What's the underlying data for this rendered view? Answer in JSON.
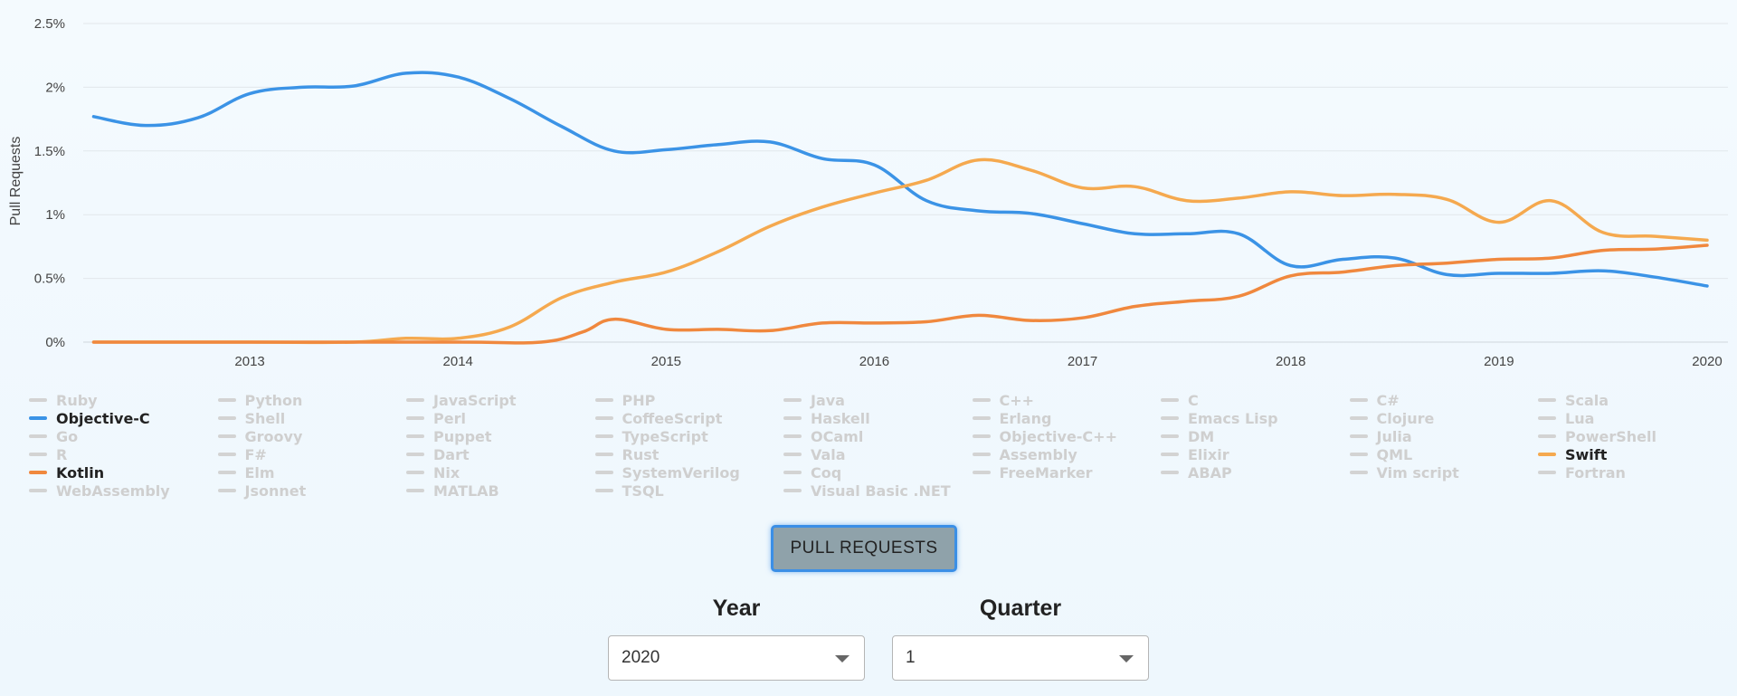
{
  "chart_data": {
    "type": "line",
    "ylabel": "Pull Requests",
    "xlabel": "",
    "title": "",
    "ylim": [
      0,
      2.5
    ],
    "xlim": [
      2012.2,
      2020.1
    ],
    "y_ticks": [
      "0%",
      "0.5%",
      "1%",
      "1.5%",
      "2%",
      "2.5%"
    ],
    "x_ticks": [
      "2013",
      "2014",
      "2015",
      "2016",
      "2017",
      "2018",
      "2019",
      "2020"
    ],
    "grid": true,
    "series": [
      {
        "name": "Objective-C",
        "color": "#3b93e6",
        "points": [
          [
            2012.25,
            1.77
          ],
          [
            2012.5,
            1.7
          ],
          [
            2012.75,
            1.76
          ],
          [
            2013.0,
            1.95
          ],
          [
            2013.25,
            2.0
          ],
          [
            2013.5,
            2.01
          ],
          [
            2013.75,
            2.11
          ],
          [
            2014.0,
            2.08
          ],
          [
            2014.25,
            1.91
          ],
          [
            2014.5,
            1.69
          ],
          [
            2014.75,
            1.5
          ],
          [
            2015.0,
            1.51
          ],
          [
            2015.25,
            1.55
          ],
          [
            2015.5,
            1.57
          ],
          [
            2015.75,
            1.44
          ],
          [
            2016.0,
            1.39
          ],
          [
            2016.25,
            1.11
          ],
          [
            2016.5,
            1.03
          ],
          [
            2016.75,
            1.01
          ],
          [
            2017.0,
            0.93
          ],
          [
            2017.25,
            0.85
          ],
          [
            2017.5,
            0.85
          ],
          [
            2017.75,
            0.85
          ],
          [
            2018.0,
            0.6
          ],
          [
            2018.25,
            0.65
          ],
          [
            2018.5,
            0.66
          ],
          [
            2018.75,
            0.53
          ],
          [
            2019.0,
            0.54
          ],
          [
            2019.25,
            0.54
          ],
          [
            2019.5,
            0.56
          ],
          [
            2019.75,
            0.51
          ],
          [
            2020.0,
            0.44
          ]
        ]
      },
      {
        "name": "Swift",
        "color": "#f5a94f",
        "points": [
          [
            2012.25,
            0.0
          ],
          [
            2013.0,
            0.0
          ],
          [
            2013.5,
            0.0
          ],
          [
            2013.75,
            0.03
          ],
          [
            2014.0,
            0.03
          ],
          [
            2014.25,
            0.12
          ],
          [
            2014.5,
            0.35
          ],
          [
            2014.75,
            0.47
          ],
          [
            2015.0,
            0.55
          ],
          [
            2015.25,
            0.71
          ],
          [
            2015.5,
            0.91
          ],
          [
            2015.75,
            1.06
          ],
          [
            2016.0,
            1.17
          ],
          [
            2016.25,
            1.27
          ],
          [
            2016.5,
            1.43
          ],
          [
            2016.75,
            1.35
          ],
          [
            2017.0,
            1.21
          ],
          [
            2017.25,
            1.22
          ],
          [
            2017.5,
            1.11
          ],
          [
            2017.75,
            1.13
          ],
          [
            2018.0,
            1.18
          ],
          [
            2018.25,
            1.15
          ],
          [
            2018.5,
            1.16
          ],
          [
            2018.75,
            1.12
          ],
          [
            2019.0,
            0.94
          ],
          [
            2019.25,
            1.11
          ],
          [
            2019.5,
            0.86
          ],
          [
            2019.75,
            0.83
          ],
          [
            2020.0,
            0.8
          ]
        ]
      },
      {
        "name": "Kotlin",
        "color": "#f0883e",
        "points": [
          [
            2012.25,
            0.0
          ],
          [
            2013.0,
            0.0
          ],
          [
            2014.0,
            0.0
          ],
          [
            2014.4,
            0.0
          ],
          [
            2014.6,
            0.08
          ],
          [
            2014.75,
            0.18
          ],
          [
            2015.0,
            0.1
          ],
          [
            2015.25,
            0.1
          ],
          [
            2015.5,
            0.09
          ],
          [
            2015.75,
            0.15
          ],
          [
            2016.0,
            0.15
          ],
          [
            2016.25,
            0.16
          ],
          [
            2016.5,
            0.21
          ],
          [
            2016.75,
            0.17
          ],
          [
            2017.0,
            0.19
          ],
          [
            2017.25,
            0.28
          ],
          [
            2017.5,
            0.32
          ],
          [
            2017.75,
            0.36
          ],
          [
            2018.0,
            0.52
          ],
          [
            2018.25,
            0.55
          ],
          [
            2018.5,
            0.6
          ],
          [
            2018.75,
            0.62
          ],
          [
            2019.0,
            0.65
          ],
          [
            2019.25,
            0.66
          ],
          [
            2019.5,
            0.72
          ],
          [
            2019.75,
            0.73
          ],
          [
            2020.0,
            0.76
          ]
        ]
      }
    ]
  },
  "legend": {
    "items": [
      {
        "label": "Ruby",
        "active": false
      },
      {
        "label": "Python",
        "active": false
      },
      {
        "label": "JavaScript",
        "active": false
      },
      {
        "label": "PHP",
        "active": false
      },
      {
        "label": "Java",
        "active": false
      },
      {
        "label": "C++",
        "active": false
      },
      {
        "label": "C",
        "active": false
      },
      {
        "label": "C#",
        "active": false
      },
      {
        "label": "Scala",
        "active": false
      },
      {
        "label": "Objective-C",
        "active": true,
        "color": "#3b93e6"
      },
      {
        "label": "Shell",
        "active": false
      },
      {
        "label": "Perl",
        "active": false
      },
      {
        "label": "CoffeeScript",
        "active": false
      },
      {
        "label": "Haskell",
        "active": false
      },
      {
        "label": "Erlang",
        "active": false
      },
      {
        "label": "Emacs Lisp",
        "active": false
      },
      {
        "label": "Clojure",
        "active": false
      },
      {
        "label": "Lua",
        "active": false
      },
      {
        "label": "Go",
        "active": false
      },
      {
        "label": "Groovy",
        "active": false
      },
      {
        "label": "Puppet",
        "active": false
      },
      {
        "label": "TypeScript",
        "active": false
      },
      {
        "label": "OCaml",
        "active": false
      },
      {
        "label": "Objective-C++",
        "active": false
      },
      {
        "label": "DM",
        "active": false
      },
      {
        "label": "Julia",
        "active": false
      },
      {
        "label": "PowerShell",
        "active": false
      },
      {
        "label": "R",
        "active": false
      },
      {
        "label": "F#",
        "active": false
      },
      {
        "label": "Dart",
        "active": false
      },
      {
        "label": "Rust",
        "active": false
      },
      {
        "label": "Vala",
        "active": false
      },
      {
        "label": "Assembly",
        "active": false
      },
      {
        "label": "Elixir",
        "active": false
      },
      {
        "label": "QML",
        "active": false
      },
      {
        "label": "Swift",
        "active": true,
        "color": "#f5a94f"
      },
      {
        "label": "Kotlin",
        "active": true,
        "color": "#f0883e"
      },
      {
        "label": "Elm",
        "active": false
      },
      {
        "label": "Nix",
        "active": false
      },
      {
        "label": "SystemVerilog",
        "active": false
      },
      {
        "label": "Coq",
        "active": false
      },
      {
        "label": "FreeMarker",
        "active": false
      },
      {
        "label": "ABAP",
        "active": false
      },
      {
        "label": "Vim script",
        "active": false
      },
      {
        "label": "Fortran",
        "active": false
      },
      {
        "label": "WebAssembly",
        "active": false
      },
      {
        "label": "Jsonnet",
        "active": false
      },
      {
        "label": "MATLAB",
        "active": false
      },
      {
        "label": "TSQL",
        "active": false
      },
      {
        "label": "Visual Basic .NET",
        "active": false
      }
    ]
  },
  "controls": {
    "button_label": "PULL REQUESTS",
    "year_label": "Year",
    "year_value": "2020",
    "quarter_label": "Quarter",
    "quarter_value": "1"
  }
}
